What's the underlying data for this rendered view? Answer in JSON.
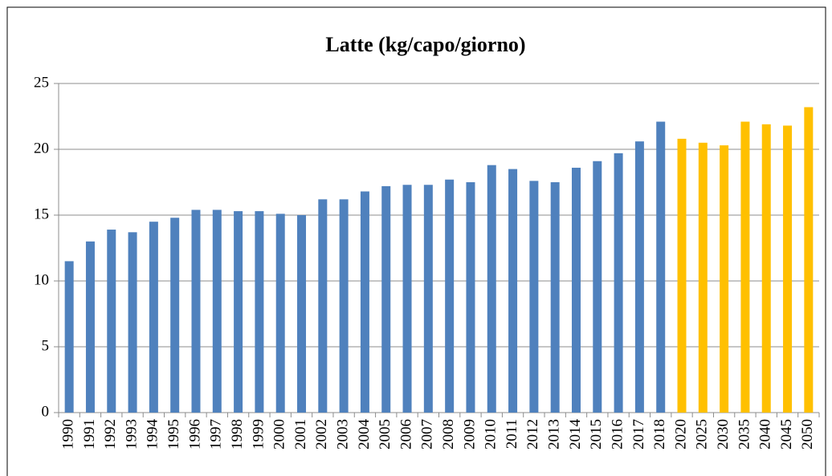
{
  "chart_data": {
    "type": "bar",
    "title": "Latte (kg/capo/giorno)",
    "categories": [
      "1990",
      "1991",
      "1992",
      "1993",
      "1994",
      "1995",
      "1996",
      "1997",
      "1998",
      "1999",
      "2000",
      "2001",
      "2002",
      "2003",
      "2004",
      "2005",
      "2006",
      "2007",
      "2008",
      "2009",
      "2010",
      "2011",
      "2012",
      "2013",
      "2014",
      "2015",
      "2016",
      "2017",
      "2018",
      "2020",
      "2025",
      "2030",
      "2035",
      "2040",
      "2045",
      "2050"
    ],
    "values": [
      11.5,
      13.0,
      13.9,
      13.7,
      14.5,
      14.8,
      15.4,
      15.4,
      15.3,
      15.3,
      15.1,
      15.0,
      16.2,
      16.2,
      16.8,
      17.2,
      17.3,
      17.3,
      17.7,
      17.5,
      18.8,
      18.5,
      17.6,
      17.5,
      18.6,
      19.1,
      19.7,
      20.6,
      22.1,
      20.8,
      20.5,
      20.3,
      22.1,
      21.9,
      21.8,
      23.2
    ],
    "colors": [
      "#4f81bd",
      "#4f81bd",
      "#4f81bd",
      "#4f81bd",
      "#4f81bd",
      "#4f81bd",
      "#4f81bd",
      "#4f81bd",
      "#4f81bd",
      "#4f81bd",
      "#4f81bd",
      "#4f81bd",
      "#4f81bd",
      "#4f81bd",
      "#4f81bd",
      "#4f81bd",
      "#4f81bd",
      "#4f81bd",
      "#4f81bd",
      "#4f81bd",
      "#4f81bd",
      "#4f81bd",
      "#4f81bd",
      "#4f81bd",
      "#4f81bd",
      "#4f81bd",
      "#4f81bd",
      "#4f81bd",
      "#4f81bd",
      "#ffc000",
      "#ffc000",
      "#ffc000",
      "#ffc000",
      "#ffc000",
      "#ffc000",
      "#ffc000"
    ],
    "ylim": [
      0,
      25
    ],
    "yticks": [
      0,
      5,
      10,
      15,
      20,
      25
    ],
    "grid": true
  }
}
